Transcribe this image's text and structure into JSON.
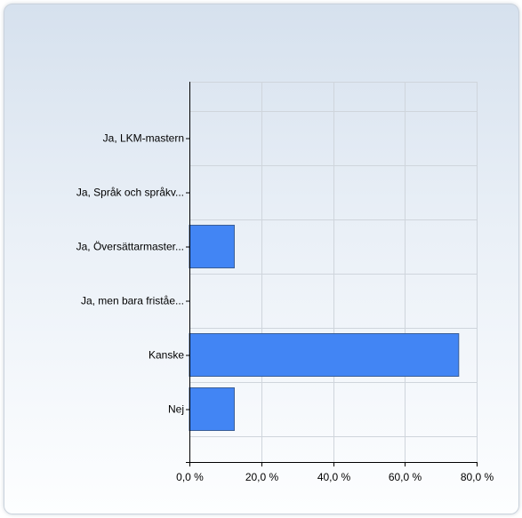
{
  "chart_data": {
    "type": "bar",
    "orientation": "horizontal",
    "categories": [
      "Ja, LKM-mastern",
      "Ja, Språk och språkv...",
      "Ja, Översättarmaster...",
      "Ja, men bara friståe...",
      "Kanske",
      "Nej"
    ],
    "values": [
      0,
      0,
      12.5,
      0,
      75.0,
      12.5
    ],
    "xlim": [
      0,
      80
    ],
    "xticks": [
      "0,0 %",
      "20,0 %",
      "40,0 %",
      "60,0 %",
      "80,0 %"
    ],
    "grid": true,
    "bar_color": "#4285f4",
    "title": "",
    "xlabel": "",
    "ylabel": ""
  }
}
